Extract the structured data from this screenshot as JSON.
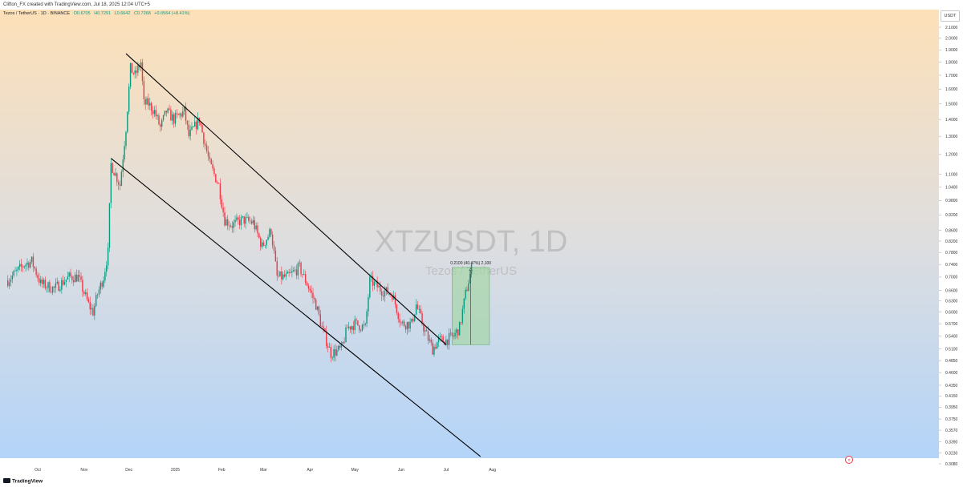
{
  "header": {
    "attribution": "Clifton_FX created with TradingView.com, Jul 18, 2025 12:04 UTC+5"
  },
  "legend": {
    "symbol_line": "Tezos / TetherUS · 1D · BINANCE",
    "open": "O0.6705",
    "high": "H0.7291",
    "low": "L0.6642",
    "close": "C0.7268",
    "change": "+0.0564 (+8.41%)"
  },
  "currency_button": "USDT",
  "watermark": {
    "title": "XTZUSDT, 1D",
    "subtitle": "Tezos / TetherUS"
  },
  "measure": {
    "label": "0.2100 (40.47%) 2,100"
  },
  "footer": {
    "brand": "TradingView"
  },
  "colors": {
    "up": "#089981",
    "down": "#f23645",
    "measure_fill": "#a5d6a7",
    "line": "#000000"
  },
  "chart_data": {
    "type": "candlestick",
    "scale": "log",
    "ylim": [
      0.308,
      2.1
    ],
    "y_ticks": [
      "2.1000",
      "2.0000",
      "1.9000",
      "1.8000",
      "1.7000",
      "1.6000",
      "1.5000",
      "1.4000",
      "1.3000",
      "1.2000",
      "1.1000",
      "1.0400",
      "0.9800",
      "0.9200",
      "0.8600",
      "0.8200",
      "0.7800",
      "0.7400",
      "0.7000",
      "0.6600",
      "0.6300",
      "0.6000",
      "0.5700",
      "0.5400",
      "0.5100",
      "0.4850",
      "0.4600",
      "0.4350",
      "0.4150",
      "0.3950",
      "0.3750",
      "0.3570",
      "0.3390",
      "0.3230",
      "0.3080"
    ],
    "x_ticks": [
      {
        "date": "2024-10-01",
        "label": "Oct"
      },
      {
        "date": "2024-11-01",
        "label": "Nov"
      },
      {
        "date": "2024-12-01",
        "label": "Dec"
      },
      {
        "date": "2025-01-01",
        "label": "2025"
      },
      {
        "date": "2025-02-01",
        "label": "Feb"
      },
      {
        "date": "2025-03-01",
        "label": "Mar"
      },
      {
        "date": "2025-04-01",
        "label": "Apr"
      },
      {
        "date": "2025-05-01",
        "label": "May"
      },
      {
        "date": "2025-06-01",
        "label": "Jun"
      },
      {
        "date": "2025-07-01",
        "label": "Jul"
      },
      {
        "date": "2025-08-01",
        "label": "Aug"
      }
    ],
    "close_path": [
      [
        "2024-09-11",
        0.69
      ],
      [
        "2024-09-22",
        0.74
      ],
      [
        "2024-09-27",
        0.75
      ],
      [
        "2024-10-03",
        0.68
      ],
      [
        "2024-10-12",
        0.665
      ],
      [
        "2024-10-22",
        0.7
      ],
      [
        "2024-10-28",
        0.7
      ],
      [
        "2024-11-04",
        0.62
      ],
      [
        "2024-11-07",
        0.6
      ],
      [
        "2024-11-10",
        0.65
      ],
      [
        "2024-11-14",
        0.7
      ],
      [
        "2024-11-17",
        0.78
      ],
      [
        "2024-11-19",
        1.15
      ],
      [
        "2024-11-25",
        1.05
      ],
      [
        "2024-11-29",
        1.35
      ],
      [
        "2024-12-02",
        1.75
      ],
      [
        "2024-12-05",
        1.7
      ],
      [
        "2024-12-09",
        1.8
      ],
      [
        "2024-12-11",
        1.5
      ],
      [
        "2024-12-14",
        1.5
      ],
      [
        "2024-12-18",
        1.45
      ],
      [
        "2024-12-22",
        1.35
      ],
      [
        "2024-12-26",
        1.45
      ],
      [
        "2024-12-31",
        1.4
      ],
      [
        "2025-01-07",
        1.45
      ],
      [
        "2025-01-10",
        1.3
      ],
      [
        "2025-01-17",
        1.4
      ],
      [
        "2025-01-24",
        1.15
      ],
      [
        "2025-01-30",
        1.05
      ],
      [
        "2025-02-03",
        0.9
      ],
      [
        "2025-02-08",
        0.88
      ],
      [
        "2025-02-15",
        0.9
      ],
      [
        "2025-02-22",
        0.89
      ],
      [
        "2025-02-28",
        0.8
      ],
      [
        "2025-03-06",
        0.86
      ],
      [
        "2025-03-10",
        0.7
      ],
      [
        "2025-03-17",
        0.7
      ],
      [
        "2025-03-25",
        0.73
      ],
      [
        "2025-03-30",
        0.68
      ],
      [
        "2025-04-05",
        0.62
      ],
      [
        "2025-04-09",
        0.56
      ],
      [
        "2025-04-15",
        0.5
      ],
      [
        "2025-04-22",
        0.51
      ],
      [
        "2025-04-26",
        0.56
      ],
      [
        "2025-05-01",
        0.57
      ],
      [
        "2025-05-08",
        0.56
      ],
      [
        "2025-05-11",
        0.69
      ],
      [
        "2025-05-19",
        0.66
      ],
      [
        "2025-05-26",
        0.65
      ],
      [
        "2025-06-01",
        0.57
      ],
      [
        "2025-06-08",
        0.57
      ],
      [
        "2025-06-11",
        0.62
      ],
      [
        "2025-06-17",
        0.55
      ],
      [
        "2025-06-22",
        0.51
      ],
      [
        "2025-06-26",
        0.53
      ],
      [
        "2025-07-01",
        0.53
      ],
      [
        "2025-07-06",
        0.54
      ],
      [
        "2025-07-10",
        0.56
      ],
      [
        "2025-07-14",
        0.65
      ],
      [
        "2025-07-18",
        0.727
      ]
    ],
    "trendlines": [
      {
        "name": "upper",
        "from": [
          "2024-11-29",
          1.87
        ],
        "to": [
          "2025-07-01",
          0.52
        ]
      },
      {
        "name": "lower",
        "from": [
          "2024-11-19",
          1.18
        ],
        "to": [
          "2025-07-24",
          0.318
        ]
      }
    ],
    "measure": {
      "from": [
        "2025-07-05",
        0.52
      ],
      "to": [
        "2025-07-30",
        0.73
      ],
      "change": 0.21,
      "percent": 40.47
    }
  }
}
